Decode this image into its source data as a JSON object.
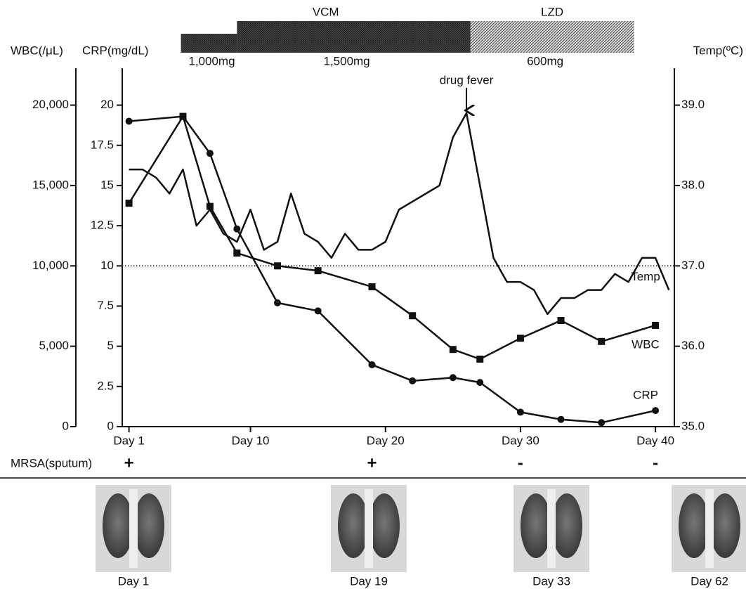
{
  "chart_data": {
    "type": "line",
    "xlim": [
      0.5,
      41.4
    ],
    "xticks": [
      {
        "value": 1,
        "label": "Day 1"
      },
      {
        "value": 10,
        "label": "Day 10"
      },
      {
        "value": 20,
        "label": "Day 20"
      },
      {
        "value": 30,
        "label": "Day 30"
      },
      {
        "value": 40,
        "label": "Day 40"
      }
    ],
    "ylabel": "WBC(/μL)",
    "ylim": [
      0,
      22300
    ],
    "yticks": [
      0,
      {
        "value": 5000,
        "label": "5,000"
      },
      {
        "value": 10000,
        "label": "10,000"
      },
      {
        "value": 15000,
        "label": "15,000"
      },
      {
        "value": 20000,
        "label": "20,000"
      }
    ],
    "y3label": "CRP(mg/dL)",
    "y3lim": [
      0,
      22.3
    ],
    "y3ticks": [
      0,
      2.5,
      5,
      7.5,
      10,
      12.5,
      15,
      17.5,
      20
    ],
    "y2label": "Temp(ºC)",
    "y2lim": [
      35,
      39.46
    ],
    "y2ticks": [
      {
        "value": 35,
        "label": "35.0"
      },
      {
        "value": 36,
        "label": "36.0"
      },
      {
        "value": 37,
        "label": "37.0"
      },
      {
        "value": 38,
        "label": "38.0"
      },
      {
        "value": 39,
        "label": "39.0"
      }
    ],
    "reference_line": {
      "value": 10000,
      "style": "dotted"
    },
    "series": [
      {
        "name": "WBC",
        "color": "#111111",
        "marker": "square",
        "axis": "y",
        "x": [
          1,
          5,
          7,
          9,
          12,
          15,
          19,
          22,
          25,
          27,
          30,
          33,
          36,
          40
        ],
        "values": [
          13900,
          19300,
          13700,
          10800,
          10000,
          9700,
          8700,
          6900,
          4800,
          4200,
          5500,
          6600,
          5300,
          6300
        ]
      },
      {
        "name": "CRP",
        "color": "#111111",
        "marker": "circle",
        "axis": "y3",
        "x": [
          1,
          5,
          7,
          9,
          12,
          15,
          19,
          22,
          25,
          27,
          30,
          33,
          36,
          40
        ],
        "values": [
          19.0,
          19.3,
          17.0,
          12.3,
          7.7,
          7.2,
          3.85,
          2.85,
          3.05,
          2.75,
          0.9,
          0.45,
          0.25,
          1.0
        ]
      },
      {
        "name": "Temp",
        "color": "#111111",
        "axis": "y2",
        "x": [
          1,
          2,
          3,
          4,
          5,
          6,
          7,
          8,
          9,
          10,
          11,
          12,
          13,
          14,
          15,
          16,
          17,
          18,
          19,
          20,
          21,
          22,
          23,
          24,
          25,
          26,
          27,
          28,
          29,
          30,
          31,
          32,
          33,
          34,
          35,
          36,
          37,
          38,
          39,
          40,
          41
        ],
        "values": [
          38.2,
          38.2,
          38.1,
          37.9,
          38.2,
          37.5,
          37.7,
          37.4,
          37.3,
          37.7,
          37.2,
          37.3,
          37.9,
          37.4,
          37.3,
          37.1,
          37.4,
          37.2,
          37.2,
          37.3,
          37.7,
          37.8,
          37.9,
          38.0,
          38.6,
          38.9,
          38.0,
          37.1,
          36.8,
          36.8,
          36.7,
          36.4,
          36.6,
          36.6,
          36.7,
          36.7,
          36.9,
          36.8,
          37.1,
          37.1,
          36.7
        ]
      }
    ],
    "annotations": [
      {
        "text": "drug fever",
        "x": 26
      }
    ],
    "treatments": [
      {
        "name": "VCM",
        "doses": [
          {
            "label": "1,000mg",
            "start": 4.85,
            "end": 9
          },
          {
            "label": "1,500mg",
            "start": 9,
            "end": 26.3
          }
        ]
      },
      {
        "name": "LZD",
        "doses": [
          {
            "label": "600mg",
            "start": 26.3,
            "end": 38.4
          }
        ]
      }
    ],
    "mrsa": {
      "label": "MRSA(sputum)",
      "x": [
        1,
        19,
        30,
        40
      ],
      "results": [
        "+",
        "+",
        "-",
        "-"
      ]
    },
    "xrays": [
      "Day 1",
      "Day 19",
      "Day 33",
      "Day 62"
    ]
  }
}
